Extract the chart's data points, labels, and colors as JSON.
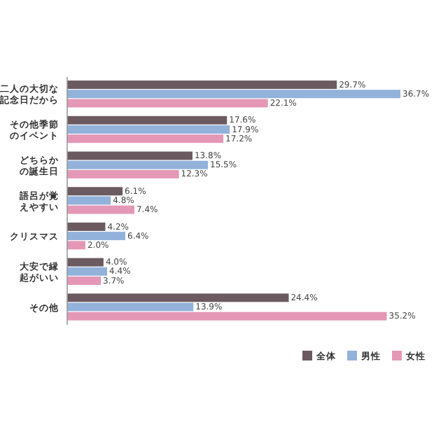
{
  "chart_data": {
    "type": "bar",
    "orientation": "horizontal",
    "categories": [
      "二人の大切な記念日だから",
      "その他季節のイベント",
      "どちらかの誕生日",
      "語呂が覚えやすい",
      "クリスマス",
      "大安で縁起がいい",
      "その他"
    ],
    "series": [
      {
        "name": "全体",
        "color": "#6b5b60",
        "values": [
          29.7,
          17.6,
          13.8,
          6.1,
          4.2,
          4.0,
          24.4
        ],
        "value_labels": [
          "29.7%",
          "17.6%",
          "13.8%",
          "6.1%",
          "4.2%",
          "4.0%",
          "24.4%"
        ]
      },
      {
        "name": "男性",
        "color": "#92b2da",
        "values": [
          36.7,
          17.9,
          15.5,
          4.8,
          6.4,
          4.4,
          13.9
        ],
        "value_labels": [
          "36.7%",
          "17.9%",
          "15.5%",
          "4.8%",
          "6.4%",
          "4.4%",
          "13.9%"
        ]
      },
      {
        "name": "女性",
        "color": "#e597b6",
        "values": [
          22.1,
          17.2,
          12.3,
          7.4,
          2.0,
          3.7,
          35.2
        ],
        "value_labels": [
          "22.1%",
          "17.2%",
          "12.3%",
          "7.4%",
          "2.0%",
          "3.7%",
          "35.2%"
        ]
      }
    ],
    "legend": "bottom right",
    "tick_labels": "y"
  }
}
